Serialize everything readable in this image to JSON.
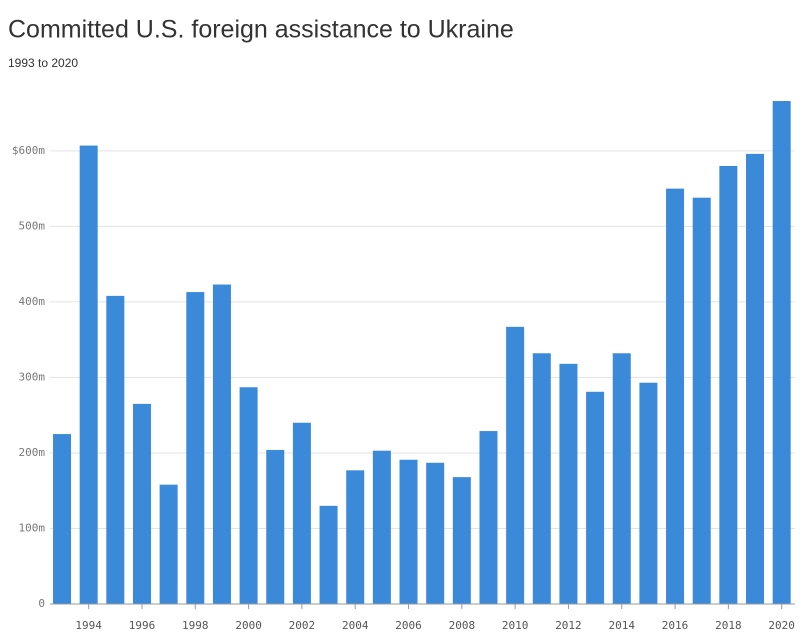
{
  "chart_data": {
    "type": "bar",
    "title": "Committed U.S. foreign assistance to Ukraine",
    "subtitle": "1993 to 2020",
    "categories": [
      null,
      "1994",
      null,
      "1996",
      null,
      "1998",
      null,
      "2000",
      null,
      "2002",
      null,
      "2004",
      null,
      "2006",
      null,
      "2008",
      null,
      "2010",
      null,
      "2012",
      null,
      "2014",
      null,
      "2016",
      null,
      "2018",
      null,
      "2020"
    ],
    "values": [
      225,
      607,
      408,
      265,
      158,
      413,
      423,
      287,
      204,
      240,
      130,
      177,
      203,
      191,
      187,
      168,
      229,
      367,
      332,
      318,
      281,
      332,
      293,
      550,
      538,
      580,
      596,
      666
    ],
    "color": "#3a8ad9",
    "ylim": [
      0,
      670
    ],
    "yticks": [
      0,
      {
        "value": 100,
        "label": "100m"
      },
      {
        "value": 200,
        "label": "200m"
      },
      {
        "value": 300,
        "label": "300m"
      },
      {
        "value": 400,
        "label": "400m"
      },
      {
        "value": 500,
        "label": "500m"
      },
      {
        "value": 600,
        "label": "$600m"
      }
    ],
    "grid": true
  }
}
